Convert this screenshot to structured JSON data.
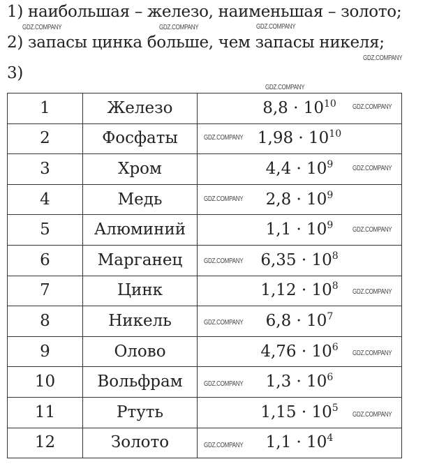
{
  "answers": {
    "a1": "1) наибольшая – железо, наименьшая – золото;",
    "a2": "2) запасы цинка больше, чем запасы никеля;",
    "a3": "3)"
  },
  "table": {
    "rows": [
      {
        "n": "1",
        "element": "Железо",
        "mantissa": "8,8",
        "exp": "10"
      },
      {
        "n": "2",
        "element": "Фосфаты",
        "mantissa": "1,98",
        "exp": "10"
      },
      {
        "n": "3",
        "element": "Хром",
        "mantissa": "4,4",
        "exp": "9"
      },
      {
        "n": "4",
        "element": "Медь",
        "mantissa": "2,8",
        "exp": "9"
      },
      {
        "n": "5",
        "element": "Алюминий",
        "mantissa": "1,1",
        "exp": "9"
      },
      {
        "n": "6",
        "element": "Марганец",
        "mantissa": "6,35",
        "exp": "8"
      },
      {
        "n": "7",
        "element": "Цинк",
        "mantissa": "1,12",
        "exp": "8"
      },
      {
        "n": "8",
        "element": "Никель",
        "mantissa": "6,8",
        "exp": "7"
      },
      {
        "n": "9",
        "element": "Олово",
        "mantissa": "4,76",
        "exp": "6"
      },
      {
        "n": "10",
        "element": "Вольфрам",
        "mantissa": "1,3",
        "exp": "6"
      },
      {
        "n": "11",
        "element": "Ртуть",
        "mantissa": "1,15",
        "exp": "5"
      },
      {
        "n": "12",
        "element": "Золото",
        "mantissa": "1,1",
        "exp": "4"
      }
    ],
    "times": "· 10"
  },
  "watermark": "GDZ.COMPANY"
}
